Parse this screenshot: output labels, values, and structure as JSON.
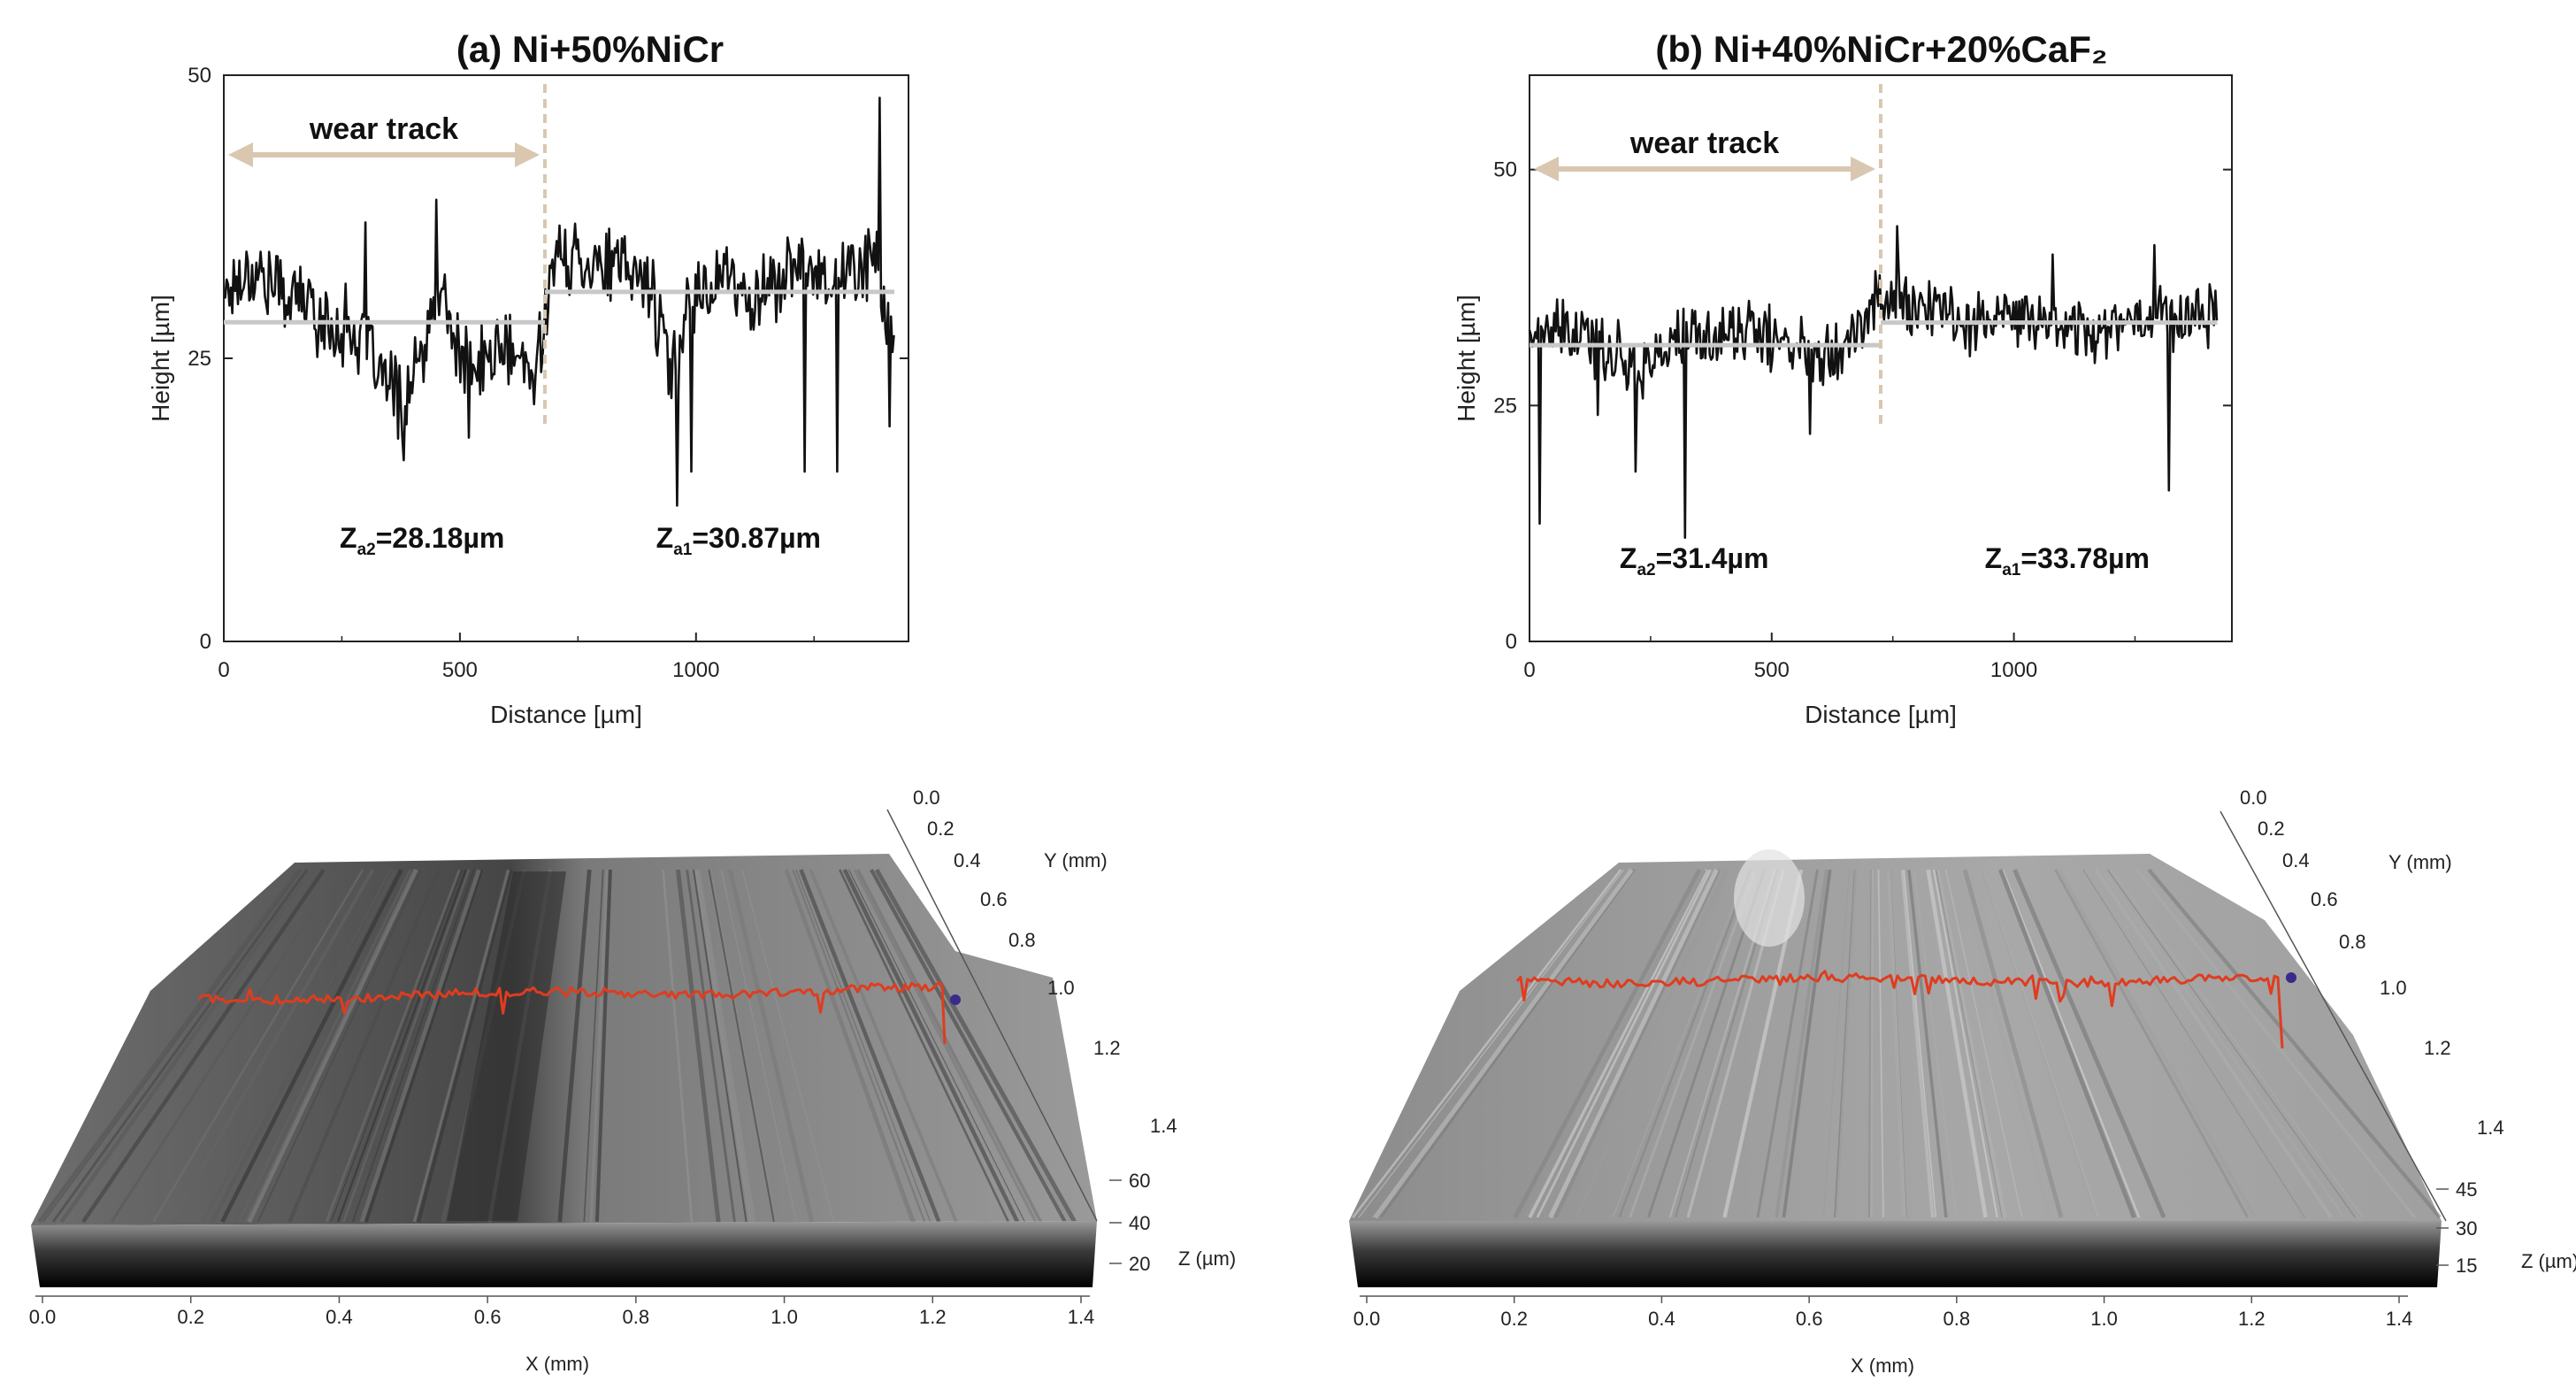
{
  "chart_data": [
    {
      "type": "line",
      "title": "(a) Ni+50%NiCr",
      "xlabel": "Distance [µm]",
      "ylabel": "Height [µm]",
      "xlim": [
        0,
        1450
      ],
      "ylim": [
        0,
        50
      ],
      "xticks": [
        {
          "v": 0,
          "label": "0"
        },
        {
          "v": 500,
          "label": "500"
        },
        {
          "v": 1000,
          "label": "1000"
        }
      ],
      "yticks": [
        {
          "v": 0,
          "label": "0"
        },
        {
          "v": 25,
          "label": "25"
        },
        {
          "v": 50,
          "label": "50"
        }
      ],
      "wear_track_label": "wear track",
      "wear_track_end": 680,
      "x_end": 1420,
      "mean_lines": [
        {
          "x0": 0,
          "x1": 680,
          "y": 28.18
        },
        {
          "x0": 680,
          "x1": 1420,
          "y": 30.87
        }
      ],
      "annotations": [
        {
          "main": "Z",
          "sub": "a2",
          "rest": "=28.18µm",
          "x": 420,
          "y": 8.3
        },
        {
          "main": "Z",
          "sub": "a1",
          "rest": "=30.87µm",
          "x": 1090,
          "y": 8.3
        }
      ],
      "series": [
        {
          "name": "profile",
          "anchors": [
            [
              0,
              31
            ],
            [
              60,
              33
            ],
            [
              120,
              31
            ],
            [
              180,
              30
            ],
            [
              220,
              27.5
            ],
            [
              260,
              28
            ],
            [
              300,
              26
            ],
            [
              340,
              23
            ],
            [
              380,
              21
            ],
            [
              420,
              25
            ],
            [
              460,
              31
            ],
            [
              500,
              25
            ],
            [
              540,
              24
            ],
            [
              580,
              26
            ],
            [
              620,
              25
            ],
            [
              660,
              23
            ],
            [
              680,
              30
            ],
            [
              700,
              33.5
            ],
            [
              760,
              34
            ],
            [
              820,
              33
            ],
            [
              900,
              32
            ],
            [
              950,
              23
            ],
            [
              980,
              30
            ],
            [
              1020,
              31
            ],
            [
              1060,
              33
            ],
            [
              1100,
              30
            ],
            [
              1140,
              31
            ],
            [
              1180,
              32
            ],
            [
              1220,
              33
            ],
            [
              1260,
              33
            ],
            [
              1300,
              32
            ],
            [
              1340,
              33
            ],
            [
              1380,
              34
            ],
            [
              1400,
              30
            ],
            [
              1420,
              26
            ]
          ],
          "spikes": [
            [
              300,
              37
            ],
            [
              380,
              16
            ],
            [
              450,
              39
            ],
            [
              520,
              18
            ],
            [
              960,
              12
            ],
            [
              990,
              15
            ],
            [
              1230,
              15
            ],
            [
              1300,
              15
            ],
            [
              1390,
              48
            ],
            [
              1410,
              19
            ]
          ]
        }
      ]
    },
    {
      "type": "line",
      "title": "(b) Ni+40%NiCr+20%CaF₂",
      "xlabel": "Distance [µm]",
      "ylabel": "Height [µm]",
      "xlim": [
        0,
        1450
      ],
      "ylim": [
        0,
        60
      ],
      "xticks": [
        {
          "v": 0,
          "label": "0"
        },
        {
          "v": 500,
          "label": "500"
        },
        {
          "v": 1000,
          "label": "1000"
        }
      ],
      "yticks": [
        {
          "v": 0,
          "label": "0"
        },
        {
          "v": 25,
          "label": "25"
        },
        {
          "v": 50,
          "label": "50"
        }
      ],
      "wear_track_label": "wear track",
      "wear_track_end": 725,
      "x_end": 1420,
      "mean_lines": [
        {
          "x0": 0,
          "x1": 725,
          "y": 31.4
        },
        {
          "x0": 725,
          "x1": 1420,
          "y": 33.78
        }
      ],
      "annotations": [
        {
          "main": "Z",
          "sub": "a2",
          "rest": "=31.4µm",
          "x": 340,
          "y": 7.8
        },
        {
          "main": "Z",
          "sub": "a1",
          "rest": "=33.78µm",
          "x": 1110,
          "y": 7.8
        }
      ],
      "series": [
        {
          "name": "profile",
          "anchors": [
            [
              0,
              33
            ],
            [
              80,
              32.5
            ],
            [
              160,
              31
            ],
            [
              240,
              29
            ],
            [
              300,
              32
            ],
            [
              360,
              32
            ],
            [
              440,
              33
            ],
            [
              500,
              32
            ],
            [
              560,
              31
            ],
            [
              620,
              31
            ],
            [
              680,
              33
            ],
            [
              725,
              37
            ],
            [
              760,
              36
            ],
            [
              840,
              35
            ],
            [
              920,
              34
            ],
            [
              1000,
              34
            ],
            [
              1080,
              34
            ],
            [
              1160,
              33
            ],
            [
              1240,
              34
            ],
            [
              1300,
              35
            ],
            [
              1360,
              34
            ],
            [
              1420,
              35
            ]
          ],
          "spikes": [
            [
              20,
              12.5
            ],
            [
              140,
              24
            ],
            [
              220,
              18
            ],
            [
              320,
              11
            ],
            [
              580,
              22
            ],
            [
              760,
              44
            ],
            [
              1080,
              41
            ],
            [
              1290,
              42
            ],
            [
              1320,
              16
            ]
          ]
        }
      ]
    }
  ],
  "surface_plots": [
    {
      "x_axis_label": "X (mm)",
      "x_ticks": [
        "0.0",
        "0.2",
        "0.4",
        "0.6",
        "0.8",
        "1.0",
        "1.2",
        "1.4"
      ],
      "y_axis_label": "Y (mm)",
      "y_ticks": [
        "0.0",
        "0.2",
        "0.4",
        "0.6",
        "0.8",
        "1.0",
        "1.2",
        "1.4"
      ],
      "z_axis_label": "Z (µm)",
      "z_ticks": [
        "60",
        "40",
        "20"
      ],
      "profile_color": "#e03c1f",
      "surface_tone": "dark"
    },
    {
      "x_axis_label": "X (mm)",
      "x_ticks": [
        "0.0",
        "0.2",
        "0.4",
        "0.6",
        "0.8",
        "1.0",
        "1.2",
        "1.4"
      ],
      "y_axis_label": "Y (mm)",
      "y_ticks": [
        "0.0",
        "0.2",
        "0.4",
        "0.6",
        "0.8",
        "1.0",
        "1.2",
        "1.4"
      ],
      "z_axis_label": "Z (µm)",
      "z_ticks": [
        "45",
        "30",
        "15"
      ],
      "profile_color": "#e03c1f",
      "surface_tone": "light"
    }
  ],
  "colors": {
    "profile_line": "#111111",
    "mean_line": "#c8c8c8",
    "wear_track": "#d9c7b0",
    "marker": "#3b2a8a"
  }
}
